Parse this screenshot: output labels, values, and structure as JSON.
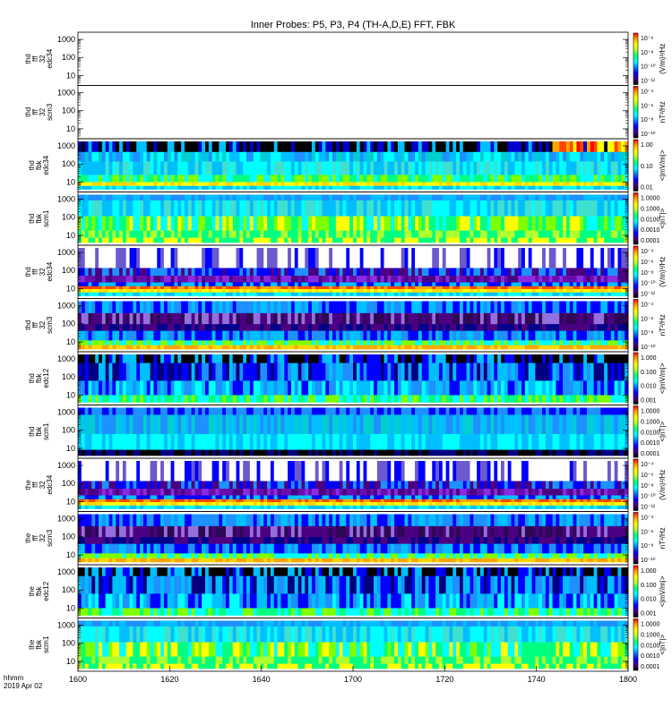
{
  "chart_data": {
    "type": "heatmap",
    "title": "Inner Probes: P5, P3, P4 (TH-A,D,E) FFT, FBK",
    "x_axis": {
      "ticks": [
        "1600",
        "1620",
        "1640",
        "1700",
        "1720",
        "1740",
        "1800"
      ],
      "tick_values_minutes": [
        0,
        20,
        40,
        60,
        80,
        100,
        120
      ],
      "label_line1": "hhmm",
      "label_line2": "2019 Apr 02"
    },
    "panels": [
      {
        "ylabel": [
          "thd",
          "fff",
          "32",
          "edc34"
        ],
        "yticks": [
          "1000",
          "100",
          "10"
        ],
        "cb_ticks": [
          "10⁻⁶",
          "10⁻⁸",
          "10⁻¹⁰",
          "10⁻¹²"
        ],
        "cb_label": "(V/m)²/Hz",
        "fill": "empty"
      },
      {
        "ylabel": [
          "thd",
          "fff",
          "32",
          "scm3"
        ],
        "yticks": [
          "1000",
          "100",
          "10"
        ],
        "cb_ticks": [
          "10⁻⁴",
          "10⁻⁶",
          "10⁻⁸",
          "10⁻¹⁰"
        ],
        "cb_label": "nT²/Hz",
        "fill": "empty"
      },
      {
        "ylabel": [
          "thd",
          "fbk",
          "edc34"
        ],
        "yticks": [
          "1000",
          "100",
          "10"
        ],
        "cb_ticks": [
          "1.00",
          "0.10",
          "0.01"
        ],
        "cb_label": "<|mV/m|>",
        "fill": "fbk_e_highact"
      },
      {
        "ylabel": [
          "thd",
          "fbk",
          "scm1"
        ],
        "yticks": [
          "1000",
          "100",
          "10"
        ],
        "cb_ticks": [
          "1.0000",
          "0.1000",
          "0.0100",
          "0.0010",
          "0.0001"
        ],
        "cb_label": "<|nT|>",
        "fill": "fbk_b"
      },
      {
        "ylabel": [
          "thd",
          "fff",
          "32",
          "edc34"
        ],
        "yticks": [
          "1000",
          "100",
          "10"
        ],
        "cb_ticks": [
          "10⁻⁴",
          "10⁻⁶",
          "10⁻⁸",
          "10⁻¹⁰",
          "10⁻¹²"
        ],
        "cb_label": "(V/m)²/Hz",
        "fill": "fff_e"
      },
      {
        "ylabel": [
          "thd",
          "fff",
          "32",
          "scm3"
        ],
        "yticks": [
          "1000",
          "100",
          "10"
        ],
        "cb_ticks": [
          "10⁻⁴",
          "10⁻⁶",
          "10⁻⁸",
          "10⁻¹⁰"
        ],
        "cb_label": "nT²/Hz",
        "fill": "fff_b"
      },
      {
        "ylabel": [
          "thd",
          "fbk",
          "edc12"
        ],
        "yticks": [
          "1000",
          "100",
          "10"
        ],
        "cb_ticks": [
          "1.000",
          "0.100",
          "0.010",
          "0.001"
        ],
        "cb_label": "<|mV/m|>",
        "fill": "fbk_e"
      },
      {
        "ylabel": [
          "thd",
          "fbk",
          "scm1"
        ],
        "yticks": [
          "1000",
          "100",
          "10"
        ],
        "cb_ticks": [
          "1.0000",
          "0.1000",
          "0.0100",
          "0.0010",
          "0.0001"
        ],
        "cb_label": "<|nT|>",
        "fill": "fbk_b_black"
      },
      {
        "ylabel": [
          "the",
          "fff",
          "32",
          "edc34"
        ],
        "yticks": [
          "1000",
          "100",
          "10"
        ],
        "cb_ticks": [
          "10⁻⁴",
          "10⁻⁶",
          "10⁻⁸",
          "10⁻¹⁰",
          "10⁻¹²"
        ],
        "cb_label": "(V/m)²/Hz",
        "fill": "fff_e"
      },
      {
        "ylabel": [
          "the",
          "fff",
          "32",
          "scm3"
        ],
        "yticks": [
          "1000",
          "100",
          "10"
        ],
        "cb_ticks": [
          "10⁻⁴",
          "10⁻⁶",
          "10⁻⁸",
          "10⁻¹⁰"
        ],
        "cb_label": "nT²/Hz",
        "fill": "fff_b"
      },
      {
        "ylabel": [
          "the",
          "fbk",
          "edc12"
        ],
        "yticks": [
          "1000",
          "100",
          "10"
        ],
        "cb_ticks": [
          "1.000",
          "0.100",
          "0.010",
          "0.001"
        ],
        "cb_label": "<|mV/m|>",
        "fill": "fbk_e"
      },
      {
        "ylabel": [
          "the",
          "fbk",
          "scm1"
        ],
        "yticks": [
          "1000",
          "100",
          "10"
        ],
        "cb_ticks": [
          "1.0000",
          "0.1000",
          "0.0100",
          "0.0010",
          "0.0001"
        ],
        "cb_label": "<|nT|>",
        "fill": "fbk_b"
      }
    ],
    "colormap": [
      "#000000",
      "#4b0082",
      "#0000ff",
      "#00bfff",
      "#00ffff",
      "#00ff7f",
      "#adff2f",
      "#ffff00",
      "#ffa500",
      "#ff0000"
    ]
  }
}
